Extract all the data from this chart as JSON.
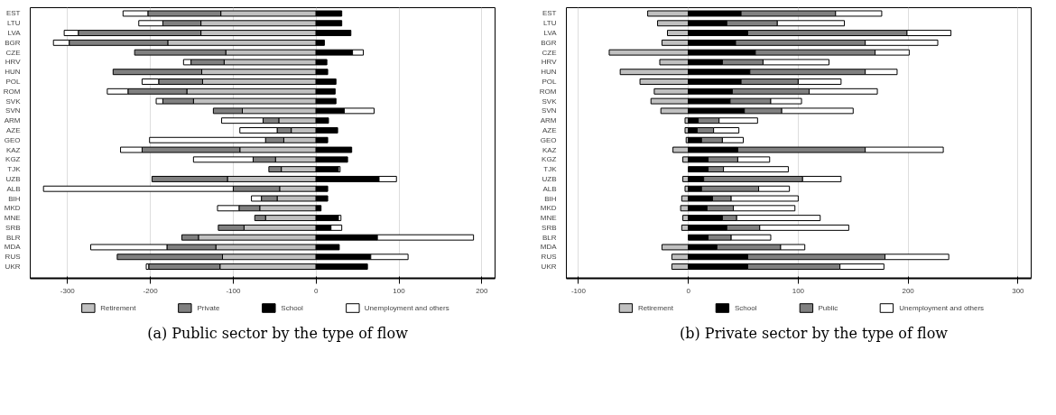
{
  "chart_data": [
    {
      "type": "bar",
      "orientation": "horizontal",
      "stacked": true,
      "title": "(a) Public sector by the type of flow",
      "categories": [
        "EST",
        "LTU",
        "LVA",
        "BGR",
        "CZE",
        "HRV",
        "HUN",
        "POL",
        "ROM",
        "SVK",
        "SVN",
        "ARM",
        "AZE",
        "GEO",
        "KAZ",
        "KGZ",
        "TJK",
        "UZB",
        "ALB",
        "BIH",
        "MKD",
        "MNE",
        "SRB",
        "BLR",
        "MDA",
        "RUS",
        "UKR"
      ],
      "series": [
        {
          "name": "Retirement",
          "color": "#c0c0c0",
          "values": [
            -115,
            -139,
            -139,
            -179,
            -109,
            -111,
            -138,
            -137,
            -156,
            -148,
            -89,
            -45,
            -30,
            -39,
            -92,
            -49,
            -42,
            -107,
            -44,
            -47,
            -68,
            -61,
            -87,
            -142,
            -121,
            -113,
            -116
          ]
        },
        {
          "name": "Private",
          "color": "#808080",
          "values": [
            -88,
            -46,
            -148,
            -119,
            -110,
            -40,
            -107,
            -53,
            -71,
            -37,
            -35,
            -19,
            -17,
            -22,
            -118,
            -27,
            -15,
            -91,
            -56,
            -19,
            -25,
            -13,
            -31,
            -20,
            -59,
            -127,
            -86
          ]
        },
        {
          "name": "School",
          "color": "#000000",
          "values": [
            31,
            31,
            42,
            10,
            44,
            13,
            14,
            24,
            23,
            24,
            34,
            15,
            26,
            14,
            43,
            38,
            27,
            76,
            14,
            14,
            6,
            27,
            18,
            74,
            28,
            66,
            62
          ]
        },
        {
          "name": "Unemployment and others",
          "color": "#ffffff",
          "values": [
            -30,
            -29,
            -17,
            -19,
            13,
            -9,
            null,
            -20,
            -25,
            -8,
            36,
            -50,
            -45,
            -140,
            -26,
            -72,
            2,
            21,
            -229,
            -12,
            -26,
            3,
            13,
            116,
            -92,
            45,
            -3
          ]
        }
      ],
      "xlim": [
        -345,
        216
      ],
      "xticks": [
        -300,
        -200,
        -100,
        0,
        100,
        200
      ],
      "grid": "x",
      "legend": "bottom"
    },
    {
      "type": "bar",
      "orientation": "horizontal",
      "stacked": true,
      "title": "(b) Private sector by the type of flow",
      "categories": [
        "EST",
        "LTU",
        "LVA",
        "BGR",
        "CZE",
        "HRV",
        "HUN",
        "POL",
        "ROM",
        "SVK",
        "SVN",
        "ARM",
        "AZE",
        "GEO",
        "KAZ",
        "KGZ",
        "TJK",
        "UZB",
        "ALB",
        "BIH",
        "MKD",
        "MNE",
        "SRB",
        "BLR",
        "MDA",
        "RUS",
        "UKR"
      ],
      "series": [
        {
          "name": "Retirement",
          "color": "#c0c0c0",
          "values": [
            -37,
            -28,
            -19,
            -24,
            -72,
            -26,
            -62,
            -44,
            -31,
            -34,
            -25,
            -3,
            -3,
            -2,
            -14,
            -5,
            null,
            -5,
            -3,
            -6,
            -7,
            -5,
            -6,
            null,
            -24,
            -15,
            -15
          ]
        },
        {
          "name": "School",
          "color": "#000000",
          "values": [
            48,
            35,
            54,
            43,
            61,
            31,
            56,
            48,
            40,
            38,
            51,
            9,
            8,
            12,
            45,
            18,
            18,
            14,
            12,
            22,
            17,
            31,
            35,
            18,
            26,
            54,
            54
          ]
        },
        {
          "name": "Public",
          "color": "#808080",
          "values": [
            86,
            46,
            145,
            118,
            109,
            37,
            105,
            52,
            70,
            37,
            34,
            19,
            15,
            19,
            116,
            27,
            14,
            90,
            52,
            17,
            24,
            13,
            30,
            21,
            58,
            125,
            84
          ]
        },
        {
          "name": "Unemployment and others",
          "color": "#ffffff",
          "values": [
            42,
            61,
            40,
            66,
            31,
            60,
            29,
            39,
            62,
            28,
            65,
            35,
            23,
            19,
            71,
            29,
            59,
            35,
            28,
            61,
            56,
            76,
            81,
            36,
            22,
            58,
            40
          ]
        }
      ],
      "xlim": [
        -111,
        312
      ],
      "xticks": [
        -100,
        0,
        100,
        200,
        300
      ],
      "grid": "x",
      "legend": "bottom"
    }
  ]
}
